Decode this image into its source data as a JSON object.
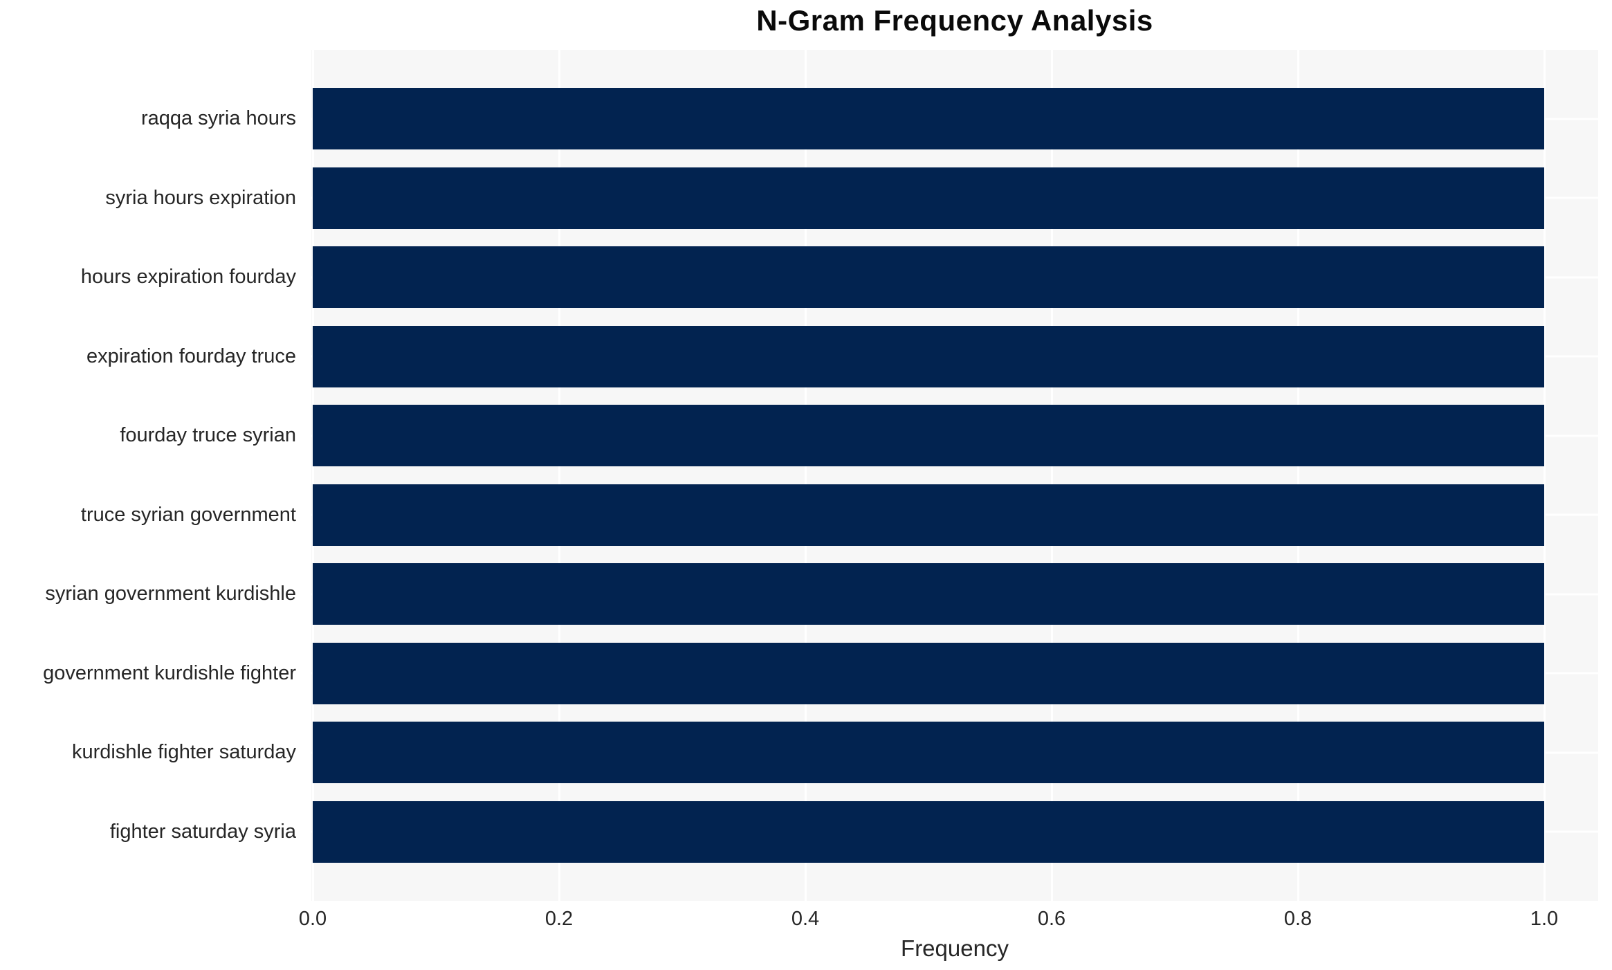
{
  "chart_data": {
    "type": "bar",
    "orientation": "horizontal",
    "title": "N-Gram Frequency Analysis",
    "xlabel": "Frequency",
    "ylabel": "",
    "categories": [
      "raqqa syria hours",
      "syria hours expiration",
      "hours expiration fourday",
      "expiration fourday truce",
      "fourday truce syrian",
      "truce syrian government",
      "syrian government kurdishle",
      "government kurdishle fighter",
      "kurdishle fighter saturday",
      "fighter saturday syria"
    ],
    "values": [
      1.0,
      1.0,
      1.0,
      1.0,
      1.0,
      1.0,
      1.0,
      1.0,
      1.0,
      1.0
    ],
    "xticks": [
      0.0,
      0.2,
      0.4,
      0.6,
      0.8,
      1.0
    ],
    "xtick_labels": [
      "0.0",
      "0.2",
      "0.4",
      "0.6",
      "0.8",
      "1.0"
    ],
    "xlim": [
      0,
      1.045
    ],
    "grid": true,
    "legend": "none",
    "colors": {
      "bar": "#022350",
      "plot_background": "#f7f7f7",
      "gridline": "#ffffff",
      "text": "#262626",
      "title": "#0a0a0a"
    }
  }
}
